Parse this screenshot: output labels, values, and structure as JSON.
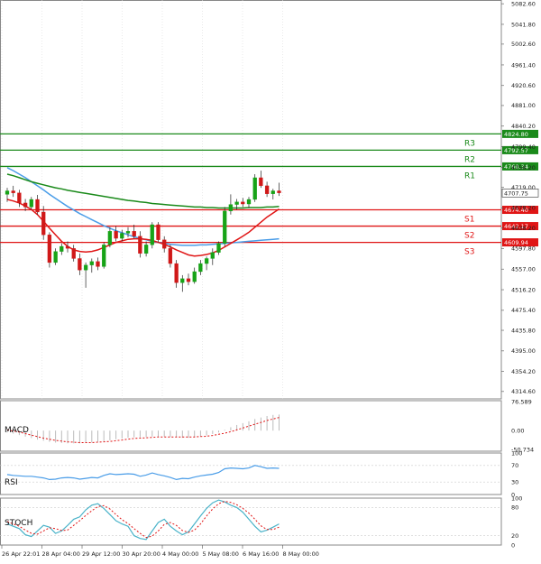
{
  "colors": {
    "up": "#17a317",
    "down": "#d01818",
    "ma_green": "#1a8a1a",
    "ma_red": "#e01515",
    "ma_blue": "#4a9de8",
    "resistance": "#1a8a1a",
    "support": "#e01515",
    "macd_hist": "#bbbbbb",
    "macd_signal": "#e01515",
    "rsi": "#4a9de8",
    "stoch_k": "#4ab3c9",
    "stoch_d": "#e01515",
    "grid": "#dddddd"
  },
  "main": {
    "price_ticks": [
      "5082.60",
      "5041.80",
      "5002.60",
      "4961.40",
      "4920.60",
      "4881.00",
      "4840.20",
      "4799.40",
      "4758.20",
      "4719.00",
      "4678.20",
      "4638.20",
      "4597.80",
      "4557.00",
      "4516.20",
      "4475.40",
      "4435.80",
      "4395.00",
      "4354.20",
      "4314.60"
    ],
    "current_price": "4707.75",
    "levels": [
      {
        "label": "R3",
        "value": 4824.8,
        "price_text": "4824.80",
        "kind": "resistance"
      },
      {
        "label": "R2",
        "value": 4792.57,
        "price_text": "4792.57",
        "kind": "resistance"
      },
      {
        "label": "R1",
        "value": 4760.34,
        "price_text": "4760.34",
        "kind": "resistance"
      },
      {
        "label": "S1",
        "value": 4674.4,
        "price_text": "4674.40",
        "kind": "support"
      },
      {
        "label": "S2",
        "value": 4642.17,
        "price_text": "4642.17",
        "kind": "support"
      },
      {
        "label": "S3",
        "value": 4609.94,
        "price_text": "4609.94",
        "kind": "support"
      }
    ]
  },
  "time_labels": [
    "26 Apr 22:01",
    "28 Apr 04:00",
    "29 Apr 12:00",
    "30 Apr 20:00",
    "4 May 00:00",
    "5 May 08:00",
    "6 May 16:00",
    "8 May 00:00"
  ],
  "macd": {
    "label": "MACD",
    "ticks": [
      "76.589",
      "0.00",
      "-50.734"
    ]
  },
  "rsi": {
    "label": "RSI",
    "ticks": [
      "100",
      "70",
      "30",
      "0"
    ]
  },
  "stoch": {
    "label": "STOCH",
    "ticks": [
      "100",
      "80",
      "20",
      "0"
    ]
  },
  "chart_data": {
    "type": "candlestick",
    "ylim": [
      4300,
      5090
    ],
    "candles": [
      [
        4705,
        4718,
        4690,
        4712
      ],
      [
        4712,
        4722,
        4700,
        4708
      ],
      [
        4708,
        4714,
        4680,
        4688
      ],
      [
        4688,
        4696,
        4672,
        4680
      ],
      [
        4680,
        4700,
        4675,
        4695
      ],
      [
        4695,
        4704,
        4665,
        4670
      ],
      [
        4670,
        4682,
        4615,
        4625
      ],
      [
        4625,
        4630,
        4560,
        4570
      ],
      [
        4570,
        4598,
        4565,
        4592
      ],
      [
        4592,
        4608,
        4585,
        4602
      ],
      [
        4602,
        4612,
        4590,
        4598
      ],
      [
        4598,
        4605,
        4572,
        4578
      ],
      [
        4578,
        4588,
        4545,
        4555
      ],
      [
        4555,
        4570,
        4520,
        4565
      ],
      [
        4565,
        4578,
        4550,
        4572
      ],
      [
        4572,
        4580,
        4555,
        4562
      ],
      [
        4562,
        4610,
        4558,
        4605
      ],
      [
        4605,
        4640,
        4600,
        4632
      ],
      [
        4632,
        4642,
        4612,
        4618
      ],
      [
        4618,
        4635,
        4612,
        4628
      ],
      [
        4628,
        4640,
        4620,
        4632
      ],
      [
        4632,
        4645,
        4618,
        4622
      ],
      [
        4622,
        4632,
        4580,
        4588
      ],
      [
        4588,
        4612,
        4582,
        4605
      ],
      [
        4605,
        4650,
        4598,
        4645
      ],
      [
        4645,
        4650,
        4610,
        4615
      ],
      [
        4615,
        4622,
        4590,
        4598
      ],
      [
        4598,
        4605,
        4560,
        4568
      ],
      [
        4568,
        4575,
        4520,
        4530
      ],
      [
        4530,
        4545,
        4512,
        4538
      ],
      [
        4538,
        4548,
        4525,
        4532
      ],
      [
        4532,
        4560,
        4528,
        4552
      ],
      [
        4552,
        4575,
        4545,
        4568
      ],
      [
        4568,
        4582,
        4555,
        4578
      ],
      [
        4578,
        4598,
        4565,
        4590
      ],
      [
        4590,
        4612,
        4585,
        4608
      ],
      [
        4608,
        4680,
        4602,
        4672
      ],
      [
        4672,
        4705,
        4665,
        4685
      ],
      [
        4685,
        4696,
        4675,
        4690
      ],
      [
        4690,
        4698,
        4680,
        4686
      ],
      [
        4686,
        4700,
        4678,
        4695
      ],
      [
        4695,
        4745,
        4690,
        4738
      ],
      [
        4738,
        4752,
        4718,
        4722
      ],
      [
        4722,
        4730,
        4700,
        4706
      ],
      [
        4706,
        4716,
        4695,
        4712
      ],
      [
        4712,
        4728,
        4702,
        4708
      ]
    ],
    "ma_green": [
      4745,
      4742,
      4738,
      4734,
      4730,
      4727,
      4724,
      4721,
      4718,
      4716,
      4713,
      4711,
      4709,
      4707,
      4705,
      4703,
      4701,
      4699,
      4697,
      4695,
      4693,
      4692,
      4690,
      4689,
      4687,
      4686,
      4685,
      4684,
      4683,
      4682,
      4681,
      4680,
      4680,
      4679,
      4679,
      4678,
      4678,
      4678,
      4678,
      4678,
      4679,
      4679,
      4679,
      4680,
      4680,
      4681
    ],
    "ma_red": [
      4695,
      4692,
      4688,
      4682,
      4675,
      4665,
      4652,
      4638,
      4625,
      4612,
      4602,
      4595,
      4592,
      4591,
      4592,
      4595,
      4600,
      4605,
      4610,
      4613,
      4616,
      4617,
      4617,
      4616,
      4614,
      4610,
      4606,
      4601,
      4595,
      4590,
      4585,
      4583,
      4584,
      4586,
      4589,
      4594,
      4601,
      4608,
      4615,
      4622,
      4630,
      4640,
      4650,
      4660,
      4668,
      4676
    ],
    "ma_blue": [
      4758,
      4752,
      4745,
      4738,
      4730,
      4722,
      4714,
      4705,
      4697,
      4689,
      4681,
      4674,
      4667,
      4661,
      4655,
      4649,
      4643,
      4638,
      4633,
      4629,
      4625,
      4621,
      4618,
      4615,
      4612,
      4610,
      4608,
      4606,
      4605,
      4604,
      4604,
      4604,
      4605,
      4605,
      4606,
      4607,
      4608,
      4609,
      4610,
      4611,
      4612,
      4613,
      4614,
      4615,
      4616,
      4617
    ],
    "macd_hist": [
      -5,
      -8,
      -12,
      -16,
      -20,
      -24,
      -27,
      -30,
      -32,
      -33,
      -34,
      -34,
      -34,
      -33,
      -32,
      -30,
      -28,
      -26,
      -23,
      -21,
      -19,
      -18,
      -18,
      -17,
      -16,
      -16,
      -16,
      -17,
      -18,
      -19,
      -19,
      -18,
      -16,
      -13,
      -9,
      -5,
      2,
      9,
      15,
      20,
      25,
      31,
      35,
      39,
      42,
      43
    ],
    "macd_signal": [
      2,
      -1,
      -4,
      -8,
      -12,
      -16,
      -20,
      -23,
      -26,
      -28,
      -30,
      -31,
      -32,
      -32,
      -32,
      -31,
      -30,
      -29,
      -27,
      -25,
      -23,
      -21,
      -20,
      -19,
      -18,
      -17,
      -17,
      -17,
      -17,
      -17,
      -17,
      -17,
      -16,
      -15,
      -13,
      -10,
      -7,
      -3,
      2,
      7,
      12,
      17,
      22,
      27,
      31,
      35
    ],
    "rsi": [
      48,
      46,
      45,
      44,
      44,
      42,
      40,
      36,
      37,
      40,
      41,
      40,
      37,
      39,
      41,
      40,
      46,
      50,
      48,
      49,
      50,
      49,
      44,
      47,
      52,
      48,
      45,
      41,
      36,
      39,
      38,
      42,
      45,
      47,
      49,
      53,
      62,
      64,
      63,
      62,
      64,
      70,
      67,
      63,
      64,
      63
    ],
    "stoch_k": [
      45,
      40,
      35,
      22,
      18,
      30,
      42,
      38,
      25,
      30,
      42,
      55,
      60,
      75,
      85,
      88,
      78,
      65,
      52,
      45,
      40,
      20,
      14,
      12,
      30,
      48,
      55,
      40,
      30,
      22,
      28,
      45,
      62,
      78,
      90,
      96,
      92,
      85,
      80,
      70,
      55,
      40,
      28,
      32,
      38,
      45
    ],
    "stoch_d": [
      50,
      45,
      40,
      32,
      25,
      23,
      30,
      37,
      35,
      31,
      32,
      42,
      52,
      63,
      73,
      82,
      84,
      77,
      65,
      54,
      46,
      35,
      25,
      16,
      19,
      30,
      44,
      48,
      42,
      31,
      27,
      32,
      45,
      62,
      77,
      88,
      93,
      91,
      86,
      78,
      68,
      55,
      41,
      33,
      33,
      38
    ]
  }
}
